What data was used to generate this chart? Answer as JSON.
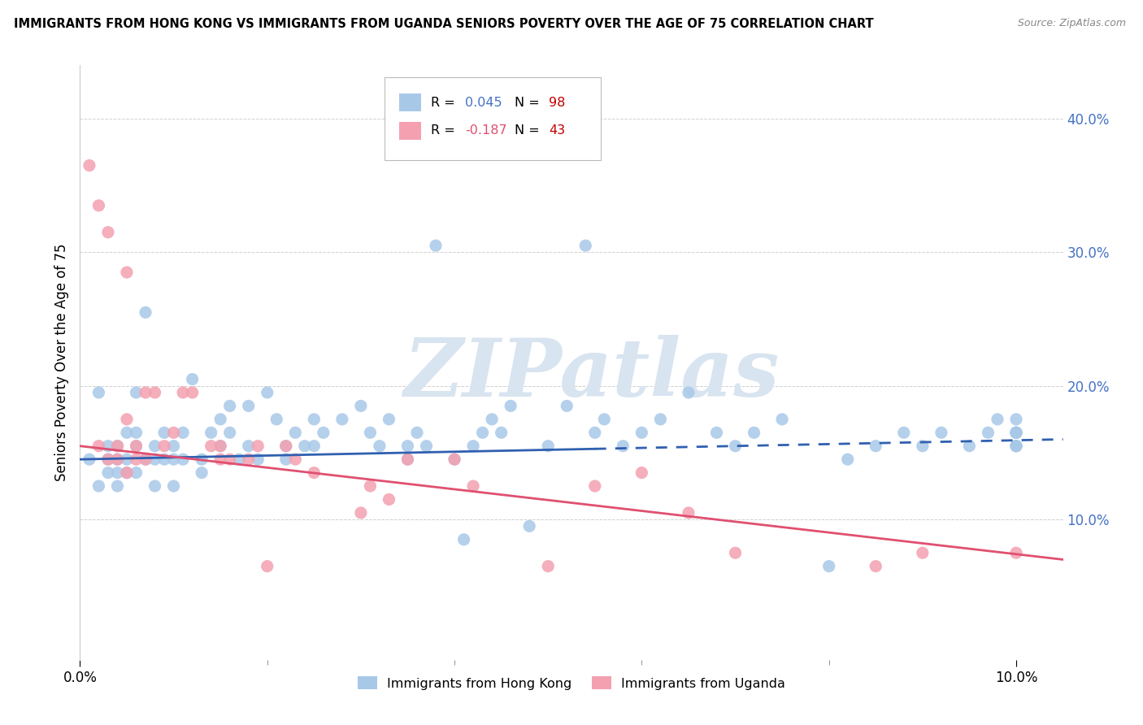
{
  "title": "IMMIGRANTS FROM HONG KONG VS IMMIGRANTS FROM UGANDA SENIORS POVERTY OVER THE AGE OF 75 CORRELATION CHART",
  "source": "Source: ZipAtlas.com",
  "ylabel": "Seniors Poverty Over the Age of 75",
  "xlim": [
    0.0,
    0.105
  ],
  "ylim": [
    -0.005,
    0.44
  ],
  "ytick_vals": [
    0.1,
    0.2,
    0.3,
    0.4
  ],
  "ytick_labels": [
    "10.0%",
    "20.0%",
    "30.0%",
    "40.0%"
  ],
  "xtick_vals": [
    0.0,
    0.1
  ],
  "xtick_labels": [
    "0.0%",
    "10.0%"
  ],
  "hk_color": "#a8c8e8",
  "ug_color": "#f4a0b0",
  "hk_R": 0.045,
  "hk_N": 98,
  "ug_R": -0.187,
  "ug_N": 43,
  "hk_line_color": "#3060b0",
  "ug_line_color": "#e05070",
  "legend_R_color": "#4472c4",
  "legend_N_color": "#c00000",
  "legend_ug_R_color": "#e05070",
  "grid_color": "#d0d0d0",
  "watermark_color": "#d8e4f0",
  "hk_line_solid_end": 0.055,
  "hk_scatter_x": [
    0.001,
    0.002,
    0.002,
    0.003,
    0.003,
    0.003,
    0.004,
    0.004,
    0.004,
    0.004,
    0.005,
    0.005,
    0.005,
    0.006,
    0.006,
    0.006,
    0.006,
    0.007,
    0.007,
    0.008,
    0.008,
    0.008,
    0.009,
    0.009,
    0.01,
    0.01,
    0.01,
    0.011,
    0.011,
    0.012,
    0.013,
    0.013,
    0.014,
    0.015,
    0.015,
    0.016,
    0.016,
    0.017,
    0.018,
    0.018,
    0.019,
    0.02,
    0.021,
    0.022,
    0.022,
    0.023,
    0.024,
    0.025,
    0.025,
    0.026,
    0.028,
    0.03,
    0.031,
    0.032,
    0.033,
    0.035,
    0.035,
    0.036,
    0.037,
    0.038,
    0.04,
    0.041,
    0.042,
    0.043,
    0.044,
    0.045,
    0.046,
    0.048,
    0.05,
    0.052,
    0.054,
    0.055,
    0.056,
    0.058,
    0.06,
    0.062,
    0.065,
    0.068,
    0.07,
    0.072,
    0.075,
    0.08,
    0.082,
    0.085,
    0.088,
    0.09,
    0.092,
    0.095,
    0.097,
    0.098,
    0.1,
    0.1,
    0.1,
    0.1,
    0.1,
    0.1,
    0.1,
    0.1
  ],
  "hk_scatter_y": [
    0.145,
    0.195,
    0.125,
    0.155,
    0.135,
    0.145,
    0.155,
    0.135,
    0.145,
    0.125,
    0.165,
    0.145,
    0.135,
    0.195,
    0.165,
    0.155,
    0.135,
    0.255,
    0.145,
    0.155,
    0.145,
    0.125,
    0.165,
    0.145,
    0.155,
    0.145,
    0.125,
    0.165,
    0.145,
    0.205,
    0.145,
    0.135,
    0.165,
    0.175,
    0.155,
    0.185,
    0.165,
    0.145,
    0.185,
    0.155,
    0.145,
    0.195,
    0.175,
    0.155,
    0.145,
    0.165,
    0.155,
    0.175,
    0.155,
    0.165,
    0.175,
    0.185,
    0.165,
    0.155,
    0.175,
    0.155,
    0.145,
    0.165,
    0.155,
    0.305,
    0.145,
    0.085,
    0.155,
    0.165,
    0.175,
    0.165,
    0.185,
    0.095,
    0.155,
    0.185,
    0.305,
    0.165,
    0.175,
    0.155,
    0.165,
    0.175,
    0.195,
    0.165,
    0.155,
    0.165,
    0.175,
    0.065,
    0.145,
    0.155,
    0.165,
    0.155,
    0.165,
    0.155,
    0.165,
    0.175,
    0.155,
    0.165,
    0.155,
    0.165,
    0.175,
    0.155,
    0.165,
    0.165
  ],
  "ug_scatter_x": [
    0.001,
    0.002,
    0.002,
    0.003,
    0.003,
    0.004,
    0.004,
    0.005,
    0.005,
    0.005,
    0.006,
    0.006,
    0.007,
    0.007,
    0.008,
    0.009,
    0.01,
    0.011,
    0.012,
    0.014,
    0.015,
    0.015,
    0.016,
    0.018,
    0.019,
    0.02,
    0.022,
    0.023,
    0.025,
    0.03,
    0.031,
    0.033,
    0.035,
    0.04,
    0.042,
    0.05,
    0.055,
    0.06,
    0.065,
    0.07,
    0.085,
    0.09,
    0.1
  ],
  "ug_scatter_y": [
    0.365,
    0.335,
    0.155,
    0.315,
    0.145,
    0.155,
    0.145,
    0.285,
    0.135,
    0.175,
    0.155,
    0.145,
    0.195,
    0.145,
    0.195,
    0.155,
    0.165,
    0.195,
    0.195,
    0.155,
    0.155,
    0.145,
    0.145,
    0.145,
    0.155,
    0.065,
    0.155,
    0.145,
    0.135,
    0.105,
    0.125,
    0.115,
    0.145,
    0.145,
    0.125,
    0.065,
    0.125,
    0.135,
    0.105,
    0.075,
    0.065,
    0.075,
    0.075
  ]
}
